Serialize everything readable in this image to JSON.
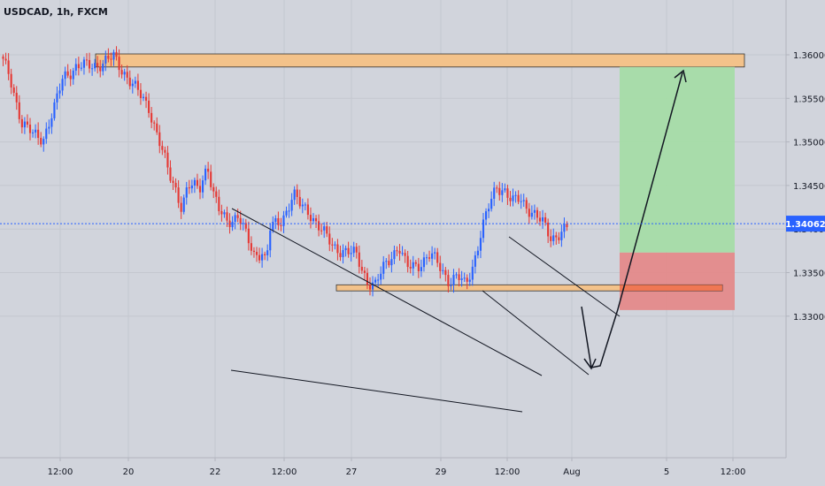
{
  "chart_data": {
    "type": "candlestick",
    "title": "USDCAD, 1h, FXCM",
    "symbol": "USDCAD",
    "interval": "1h",
    "source": "FXCM",
    "ylim": [
      1.329,
      1.3615
    ],
    "y_ticks": [
      "1.36000",
      "1.35500",
      "1.35000",
      "1.34500",
      "1.34000",
      "1.33500",
      "1.33000"
    ],
    "x_ticks": [
      "12:00",
      "20",
      "22",
      "12:00",
      "27",
      "29",
      "12:00",
      "Aug",
      "5",
      "12:00"
    ],
    "current_price": "1.34062",
    "colors": {
      "up": "#2962ff",
      "down": "#e53935",
      "supply_zone": "#f3c28a",
      "target": "#a5dca6",
      "stop": "#e48a8a",
      "price_line": "#2962ff"
    },
    "price_path": [
      [
        0,
        1.3598
      ],
      [
        0.012,
        1.3575
      ],
      [
        0.028,
        1.352
      ],
      [
        0.042,
        1.3508
      ],
      [
        0.055,
        1.3505
      ],
      [
        0.07,
        1.354
      ],
      [
        0.08,
        1.3575
      ],
      [
        0.095,
        1.3585
      ],
      [
        0.115,
        1.3588
      ],
      [
        0.13,
        1.359
      ],
      [
        0.145,
        1.3597
      ],
      [
        0.16,
        1.3578
      ],
      [
        0.175,
        1.3558
      ],
      [
        0.19,
        1.354
      ],
      [
        0.205,
        1.3495
      ],
      [
        0.215,
        1.3465
      ],
      [
        0.225,
        1.3445
      ],
      [
        0.232,
        1.3425
      ],
      [
        0.24,
        1.3448
      ],
      [
        0.255,
        1.3448
      ],
      [
        0.265,
        1.3475
      ],
      [
        0.272,
        1.344
      ],
      [
        0.28,
        1.342
      ],
      [
        0.29,
        1.341
      ],
      [
        0.305,
        1.3415
      ],
      [
        0.315,
        1.339
      ],
      [
        0.325,
        1.337
      ],
      [
        0.335,
        1.3375
      ],
      [
        0.34,
        1.336
      ],
      [
        0.345,
        1.34
      ],
      [
        0.36,
        1.341
      ],
      [
        0.375,
        1.344
      ],
      [
        0.385,
        1.3425
      ],
      [
        0.395,
        1.342
      ],
      [
        0.41,
        1.34
      ],
      [
        0.425,
        1.338
      ],
      [
        0.44,
        1.3375
      ],
      [
        0.455,
        1.337
      ],
      [
        0.47,
        1.334
      ],
      [
        0.48,
        1.3335
      ],
      [
        0.49,
        1.3355
      ],
      [
        0.5,
        1.337
      ],
      [
        0.51,
        1.338
      ],
      [
        0.52,
        1.3355
      ],
      [
        0.535,
        1.336
      ],
      [
        0.55,
        1.337
      ],
      [
        0.56,
        1.336
      ],
      [
        0.575,
        1.334
      ],
      [
        0.585,
        1.3345
      ],
      [
        0.595,
        1.3335
      ],
      [
        0.605,
        1.336
      ],
      [
        0.615,
        1.3395
      ],
      [
        0.625,
        1.3425
      ],
      [
        0.635,
        1.345
      ],
      [
        0.645,
        1.3445
      ],
      [
        0.655,
        1.343
      ],
      [
        0.665,
        1.3435
      ],
      [
        0.675,
        1.3425
      ],
      [
        0.685,
        1.3415
      ],
      [
        0.695,
        1.3405
      ],
      [
        0.705,
        1.339
      ],
      [
        0.715,
        1.3395
      ],
      [
        0.725,
        1.34
      ]
    ],
    "annotations": {
      "supply_zone": {
        "price_low": 1.3586,
        "price_high": 1.3601
      },
      "demand_zone": {
        "price_low": 1.3329,
        "price_high": 1.3336
      },
      "target_box": {
        "price_low": 1.3373,
        "price_high": 1.3586
      },
      "stop_box": {
        "price_low": 1.3307,
        "price_high": 1.3373
      }
    }
  }
}
